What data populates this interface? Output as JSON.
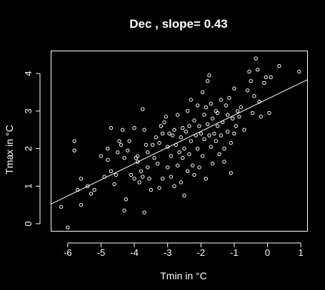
{
  "colors": {
    "background": "#000000",
    "foreground": "#ffffff"
  },
  "chart_data": {
    "type": "scatter",
    "title": "Dec , slope= 0.43",
    "xlabel": "Tmin in  °C",
    "ylabel": "Tmax in  °C",
    "xlim": [
      -6.5,
      1.2
    ],
    "ylim": [
      -0.2,
      4.6
    ],
    "xticks": [
      -6,
      -5,
      -4,
      -3,
      -2,
      -1,
      0,
      1
    ],
    "yticks": [
      0,
      1,
      2,
      3,
      4
    ],
    "grid": false,
    "legend": "none",
    "regression_line": {
      "slope": 0.43,
      "intercept": 3.32,
      "x_range": [
        -6.5,
        1.2
      ]
    },
    "points": [
      [
        -6.0,
        -0.1
      ],
      [
        -6.2,
        0.45
      ],
      [
        -5.8,
        2.2
      ],
      [
        -5.8,
        1.95
      ],
      [
        -5.7,
        0.9
      ],
      [
        -5.6,
        1.2
      ],
      [
        -5.6,
        0.5
      ],
      [
        -5.4,
        1.0
      ],
      [
        -5.3,
        0.8
      ],
      [
        -5.2,
        0.9
      ],
      [
        -5.0,
        1.8
      ],
      [
        -4.9,
        1.25
      ],
      [
        -4.8,
        1.7
      ],
      [
        -4.8,
        2.0
      ],
      [
        -4.7,
        2.55
      ],
      [
        -4.7,
        1.4
      ],
      [
        -4.6,
        1.05
      ],
      [
        -4.55,
        1.3
      ],
      [
        -4.5,
        1.9
      ],
      [
        -4.45,
        2.2
      ],
      [
        -4.4,
        2.1
      ],
      [
        -4.35,
        2.5
      ],
      [
        -4.3,
        1.75
      ],
      [
        -4.3,
        0.35
      ],
      [
        -4.25,
        0.65
      ],
      [
        -4.2,
        1.95
      ],
      [
        -4.15,
        2.2
      ],
      [
        -4.1,
        1.3
      ],
      [
        -4.0,
        1.2
      ],
      [
        -4.0,
        2.55
      ],
      [
        -3.95,
        1.75
      ],
      [
        -3.9,
        1.65
      ],
      [
        -3.9,
        1.8
      ],
      [
        -3.85,
        1.1
      ],
      [
        -3.8,
        1.4
      ],
      [
        -3.75,
        1.25
      ],
      [
        -3.7,
        2.5
      ],
      [
        -3.7,
        0.3
      ],
      [
        -3.75,
        3.05
      ],
      [
        -3.65,
        2.1
      ],
      [
        -3.6,
        1.9
      ],
      [
        -3.6,
        1.5
      ],
      [
        -3.55,
        1.2
      ],
      [
        -3.5,
        0.9
      ],
      [
        -3.45,
        2.1
      ],
      [
        -3.4,
        1.75
      ],
      [
        -3.35,
        2.3
      ],
      [
        -3.3,
        1.6
      ],
      [
        -3.25,
        2.15
      ],
      [
        -3.25,
        0.95
      ],
      [
        -3.2,
        2.6
      ],
      [
        -3.15,
        2.4
      ],
      [
        -3.15,
        1.2
      ],
      [
        -3.1,
        2.7
      ],
      [
        -3.05,
        2.85
      ],
      [
        -3.0,
        2.05
      ],
      [
        -3.0,
        1.5
      ],
      [
        -2.95,
        2.4
      ],
      [
        -2.9,
        1.25
      ],
      [
        -2.9,
        1.8
      ],
      [
        -2.85,
        2.35
      ],
      [
        -2.8,
        2.5
      ],
      [
        -2.8,
        1.0
      ],
      [
        -2.75,
        2.1
      ],
      [
        -2.7,
        2.9
      ],
      [
        -2.7,
        1.55
      ],
      [
        -2.65,
        1.9
      ],
      [
        -2.6,
        2.3
      ],
      [
        -2.6,
        1.1
      ],
      [
        -2.55,
        2.55
      ],
      [
        -2.55,
        1.75
      ],
      [
        -2.5,
        2.0
      ],
      [
        -2.5,
        0.75
      ],
      [
        -2.45,
        2.45
      ],
      [
        -2.4,
        3.0
      ],
      [
        -2.4,
        1.4
      ],
      [
        -2.35,
        2.6
      ],
      [
        -2.35,
        1.85
      ],
      [
        -2.3,
        3.3
      ],
      [
        -2.3,
        2.2
      ],
      [
        -2.25,
        1.55
      ],
      [
        -2.2,
        2.75
      ],
      [
        -2.2,
        1.3
      ],
      [
        -2.15,
        2.35
      ],
      [
        -2.1,
        3.15
      ],
      [
        -2.1,
        2.0
      ],
      [
        -2.05,
        2.6
      ],
      [
        -2.05,
        1.5
      ],
      [
        -2.0,
        2.4
      ],
      [
        -1.95,
        3.5
      ],
      [
        -1.95,
        1.8
      ],
      [
        -1.9,
        2.9
      ],
      [
        -1.9,
        2.25
      ],
      [
        -1.85,
        3.1
      ],
      [
        -1.85,
        1.2
      ],
      [
        -1.8,
        2.65
      ],
      [
        -1.8,
        3.8
      ],
      [
        -1.75,
        2.35
      ],
      [
        -1.75,
        3.95
      ],
      [
        -1.7,
        2.05
      ],
      [
        -1.7,
        3.2
      ],
      [
        -1.65,
        2.8
      ],
      [
        -1.65,
        1.6
      ],
      [
        -1.6,
        2.4
      ],
      [
        -1.55,
        3.0
      ],
      [
        -1.55,
        2.2
      ],
      [
        -1.5,
        2.6
      ],
      [
        -1.5,
        2.95
      ],
      [
        -1.45,
        1.85
      ],
      [
        -1.4,
        3.3
      ],
      [
        -1.4,
        2.35
      ],
      [
        -1.35,
        2.7
      ],
      [
        -1.3,
        2.0
      ],
      [
        -1.3,
        1.65
      ],
      [
        -1.25,
        3.15
      ],
      [
        -1.2,
        2.45
      ],
      [
        -1.2,
        2.9
      ],
      [
        -1.15,
        3.35
      ],
      [
        -1.1,
        2.15
      ],
      [
        -1.1,
        1.35
      ],
      [
        -1.05,
        2.8
      ],
      [
        -1.0,
        2.4
      ],
      [
        -1.0,
        3.6
      ],
      [
        -0.95,
        2.6
      ],
      [
        -0.9,
        3.0
      ],
      [
        -0.85,
        2.85
      ],
      [
        -0.8,
        3.1
      ],
      [
        -0.7,
        2.5
      ],
      [
        -0.6,
        3.55
      ],
      [
        -0.55,
        4.05
      ],
      [
        -0.5,
        3.8
      ],
      [
        -0.45,
        2.95
      ],
      [
        -0.4,
        3.4
      ],
      [
        -0.35,
        4.4
      ],
      [
        -0.3,
        4.1
      ],
      [
        -0.25,
        3.25
      ],
      [
        -0.2,
        2.85
      ],
      [
        -0.1,
        3.75
      ],
      [
        -0.05,
        3.9
      ],
      [
        0.05,
        2.95
      ],
      [
        0.1,
        3.9
      ],
      [
        0.35,
        4.2
      ],
      [
        0.95,
        4.05
      ]
    ]
  }
}
